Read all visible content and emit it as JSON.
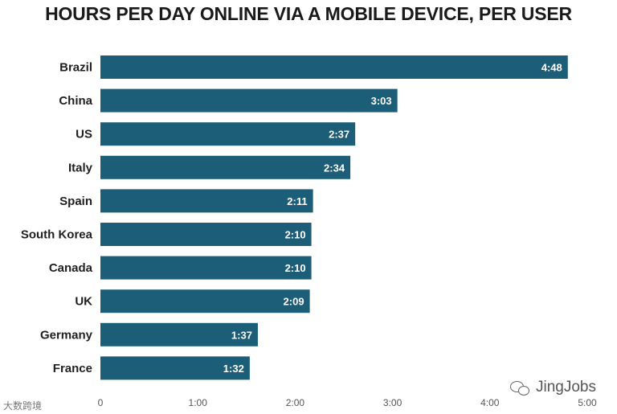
{
  "chart_data": {
    "type": "bar",
    "orientation": "horizontal",
    "title": "HOURS PER DAY ONLINE VIA A MOBILE DEVICE, PER USER",
    "categories": [
      "Brazil",
      "China",
      "US",
      "Italy",
      "Spain",
      "South Korea",
      "Canada",
      "UK",
      "Germany",
      "France"
    ],
    "values": [
      288,
      183,
      157,
      154,
      131,
      130,
      130,
      129,
      97,
      92
    ],
    "value_labels": [
      "4:48",
      "3:03",
      "2:37",
      "2:34",
      "2:11",
      "2:10",
      "2:10",
      "2:09",
      "1:37",
      "1:32"
    ],
    "value_unit": "minutes",
    "xlim": [
      0,
      300
    ],
    "ticks": [
      0,
      60,
      120,
      180,
      240,
      300
    ],
    "tick_labels": [
      "0",
      "1:00",
      "2:00",
      "3:00",
      "4:00",
      "5:00"
    ],
    "xlabel": "",
    "ylabel": "",
    "grid": false,
    "bar_color": "#1c5d78"
  },
  "watermarks": {
    "right": "JingJobs",
    "left": "大数跨境"
  }
}
